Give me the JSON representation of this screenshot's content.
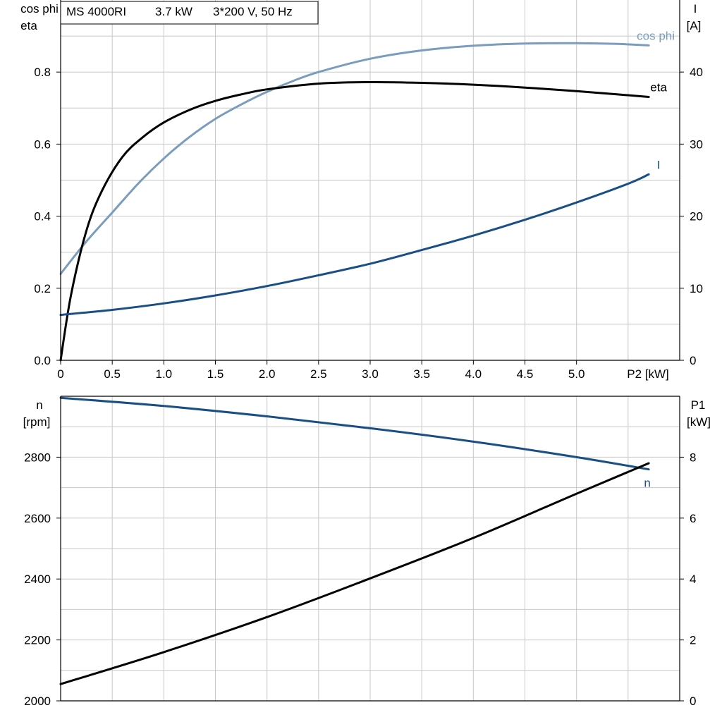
{
  "header": {
    "model": "MS 4000RI",
    "power": "3.7 kW",
    "supply": "3*200 V, 50 Hz"
  },
  "colors": {
    "eta": "#000000",
    "cos_phi": "#7a9cbd",
    "current": "#1a4f86",
    "speed": "#1a4f86",
    "p1": "#000000"
  },
  "chart_data": [
    {
      "type": "line",
      "x_axis": {
        "label": "P2 [kW]",
        "range": [
          0,
          6
        ],
        "ticks": [
          "0",
          "0.5",
          "1.0",
          "1.5",
          "2.0",
          "2.5",
          "3.0",
          "3.5",
          "4.0",
          "4.5",
          "5.0"
        ]
      },
      "y_left": {
        "label_line1": "cos phi",
        "label_line2": "eta",
        "range": [
          0,
          1.0
        ],
        "ticks": [
          "0.0",
          "0.2",
          "0.4",
          "0.6",
          "0.8"
        ]
      },
      "y_right": {
        "label_line1": "I",
        "label_line2": "[A]",
        "range": [
          0,
          50
        ],
        "ticks": [
          "0",
          "10",
          "20",
          "30",
          "40"
        ]
      },
      "grid": true,
      "series": [
        {
          "name": "cos phi",
          "axis": "left",
          "key": "cos_phi",
          "x": [
            0,
            0.25,
            0.5,
            0.75,
            1.0,
            1.25,
            1.5,
            1.75,
            2.0,
            2.25,
            2.5,
            3.0,
            3.5,
            4.0,
            4.5,
            5.0,
            5.4,
            5.7
          ],
          "y": [
            0.24,
            0.33,
            0.41,
            0.49,
            0.56,
            0.62,
            0.67,
            0.71,
            0.745,
            0.775,
            0.8,
            0.837,
            0.86,
            0.873,
            0.879,
            0.88,
            0.878,
            0.874
          ]
        },
        {
          "name": "eta",
          "axis": "left",
          "key": "eta",
          "x": [
            0,
            0.1,
            0.25,
            0.4,
            0.6,
            0.8,
            1.0,
            1.25,
            1.5,
            1.75,
            2.0,
            2.5,
            3.0,
            3.5,
            4.0,
            4.5,
            5.0,
            5.4,
            5.7
          ],
          "y": [
            0.0,
            0.18,
            0.36,
            0.47,
            0.565,
            0.62,
            0.66,
            0.695,
            0.72,
            0.738,
            0.752,
            0.768,
            0.772,
            0.77,
            0.765,
            0.757,
            0.747,
            0.738,
            0.731
          ]
        },
        {
          "name": "I",
          "axis": "right",
          "key": "current",
          "x": [
            0,
            0.5,
            1.0,
            1.5,
            2.0,
            2.5,
            3.0,
            3.5,
            4.0,
            4.5,
            5.0,
            5.5,
            5.7
          ],
          "y": [
            6.3,
            7.0,
            7.9,
            9.0,
            10.3,
            11.8,
            13.4,
            15.3,
            17.3,
            19.5,
            21.9,
            24.5,
            25.8
          ]
        }
      ]
    },
    {
      "type": "line",
      "x_axis": {
        "range": [
          0,
          6
        ]
      },
      "y_left": {
        "label_line1": "n",
        "label_line2": "[rpm]",
        "range": [
          2000,
          3000
        ],
        "ticks": [
          "2000",
          "2200",
          "2400",
          "2600",
          "2800"
        ]
      },
      "y_right": {
        "label_line1": "P1",
        "label_line2": "[kW]",
        "range": [
          0,
          10
        ],
        "ticks": [
          "0",
          "2",
          "4",
          "6",
          "8"
        ]
      },
      "grid": true,
      "series": [
        {
          "name": "n",
          "axis": "left",
          "key": "speed",
          "x": [
            0,
            1.0,
            2.0,
            3.0,
            4.0,
            5.0,
            5.7
          ],
          "y": [
            2995,
            2968,
            2934,
            2895,
            2851,
            2800,
            2760
          ]
        },
        {
          "name": "",
          "axis": "right",
          "key": "p1",
          "x": [
            0,
            1.0,
            2.0,
            3.0,
            4.0,
            5.0,
            5.7
          ],
          "y": [
            0.55,
            1.6,
            2.75,
            4.02,
            5.35,
            6.8,
            7.8
          ]
        }
      ]
    }
  ]
}
